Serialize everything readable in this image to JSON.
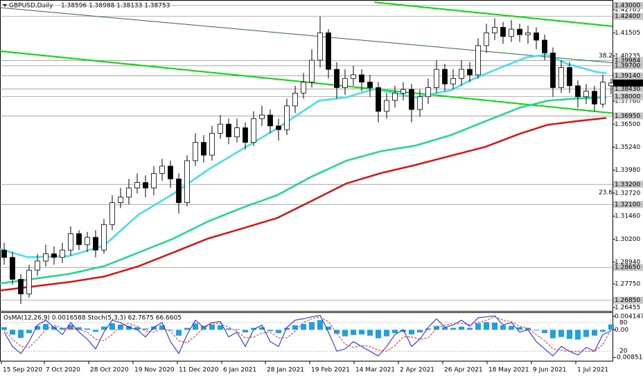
{
  "chart_data": {
    "type": "candlestick",
    "title": "GBPUSD,Daily",
    "quote": "1.38596 1.38988 1.38133 1.38753",
    "open": [
      1.296,
      1.292,
      1.28,
      1.272,
      1.285,
      1.29,
      1.294,
      1.292,
      1.296,
      1.305,
      1.299,
      1.303,
      1.296,
      1.31,
      1.322,
      1.325,
      1.33,
      1.333,
      1.33,
      1.338,
      1.342,
      1.335,
      1.322,
      1.345,
      1.355,
      1.348,
      1.36,
      1.365,
      1.358,
      1.363,
      1.355,
      1.368,
      1.37,
      1.364,
      1.362,
      1.375,
      1.382,
      1.388,
      1.4,
      1.415,
      1.395,
      1.385,
      1.39,
      1.392,
      1.388,
      1.385,
      1.372,
      1.378,
      1.382,
      1.384,
      1.373,
      1.38,
      1.385,
      1.395,
      1.387,
      1.39,
      1.395,
      1.392,
      1.408,
      1.415,
      1.418,
      1.413,
      1.417,
      1.414,
      1.415,
      1.411,
      1.404,
      1.385,
      1.396,
      1.386,
      1.38,
      1.383,
      1.376,
      1.386
    ],
    "high": [
      1.3,
      1.295,
      1.283,
      1.288,
      1.294,
      1.299,
      1.298,
      1.3,
      1.309,
      1.307,
      1.306,
      1.307,
      1.313,
      1.326,
      1.33,
      1.335,
      1.338,
      1.337,
      1.342,
      1.346,
      1.345,
      1.338,
      1.348,
      1.36,
      1.359,
      1.364,
      1.37,
      1.368,
      1.368,
      1.366,
      1.372,
      1.375,
      1.373,
      1.368,
      1.379,
      1.386,
      1.393,
      1.406,
      1.424,
      1.417,
      1.399,
      1.395,
      1.397,
      1.395,
      1.392,
      1.388,
      1.382,
      1.386,
      1.388,
      1.387,
      1.384,
      1.39,
      1.4,
      1.398,
      1.395,
      1.4,
      1.399,
      1.412,
      1.42,
      1.423,
      1.421,
      1.422,
      1.42,
      1.419,
      1.418,
      1.414,
      1.407,
      1.4,
      1.399,
      1.389,
      1.387,
      1.386,
      1.392,
      1.3899
    ],
    "low": [
      1.288,
      1.277,
      1.2665,
      1.27,
      1.282,
      1.287,
      1.288,
      1.289,
      1.293,
      1.296,
      1.295,
      1.292,
      1.294,
      1.307,
      1.319,
      1.321,
      1.327,
      1.325,
      1.326,
      1.334,
      1.33,
      1.316,
      1.32,
      1.342,
      1.344,
      1.345,
      1.357,
      1.354,
      1.355,
      1.351,
      1.353,
      1.364,
      1.36,
      1.356,
      1.359,
      1.371,
      1.379,
      1.385,
      1.396,
      1.39,
      1.379,
      1.381,
      1.386,
      1.383,
      1.38,
      1.366,
      1.368,
      1.374,
      1.378,
      1.366,
      1.369,
      1.376,
      1.382,
      1.383,
      1.384,
      1.386,
      1.388,
      1.39,
      1.404,
      1.411,
      1.409,
      1.41,
      1.41,
      1.409,
      1.406,
      1.4,
      1.38,
      1.382,
      1.382,
      1.374,
      1.376,
      1.372,
      1.374,
      1.3813
    ],
    "close": [
      1.292,
      1.28,
      1.272,
      1.285,
      1.29,
      1.294,
      1.292,
      1.296,
      1.305,
      1.299,
      1.303,
      1.296,
      1.31,
      1.322,
      1.325,
      1.33,
      1.333,
      1.33,
      1.338,
      1.342,
      1.335,
      1.322,
      1.345,
      1.355,
      1.348,
      1.36,
      1.365,
      1.358,
      1.363,
      1.355,
      1.368,
      1.37,
      1.364,
      1.362,
      1.375,
      1.382,
      1.388,
      1.4,
      1.415,
      1.395,
      1.385,
      1.39,
      1.392,
      1.388,
      1.385,
      1.372,
      1.378,
      1.382,
      1.384,
      1.373,
      1.38,
      1.385,
      1.395,
      1.387,
      1.39,
      1.395,
      1.392,
      1.408,
      1.415,
      1.418,
      1.413,
      1.417,
      1.414,
      1.415,
      1.411,
      1.404,
      1.385,
      1.396,
      1.386,
      1.38,
      1.383,
      1.376,
      1.388,
      1.3875
    ],
    "ylim": [
      1.2627,
      1.4326
    ],
    "yticks": [
      1.42765,
      1.41505,
      1.40235,
      {
        "value": 1.3776,
        "label": "1.37760"
      },
      {
        "value": 1.365,
        "label": "1.36500"
      },
      {
        "value": 1.3524,
        "label": "1.35240"
      },
      {
        "value": 1.3398,
        "label": "1.33980"
      },
      {
        "value": 1.3272,
        "label": "1.32720"
      },
      {
        "value": 1.3146,
        "label": "1.31460"
      },
      {
        "value": 1.302,
        "label": "1.30200"
      },
      {
        "value": 1.2894,
        "label": "1.28940"
      },
      {
        "value": 1.2775,
        "label": "1.27750"
      },
      1.26455
    ],
    "levels": [
      {
        "value": 1.43,
        "label": "1.43000"
      },
      {
        "value": 1.424,
        "label": "1.42400"
      },
      1.39984,
      {
        "value": 1.397,
        "label": "1.39700"
      },
      {
        "value": 1.3914,
        "label": "1.39140"
      },
      {
        "value": 1.3843,
        "label": "1.38430"
      },
      {
        "value": 1.38,
        "label": "1.38000"
      },
      {
        "value": 1.3695,
        "label": "1.36950"
      },
      {
        "value": 1.332,
        "label": "1.33200"
      },
      {
        "value": 1.321,
        "label": "1.32100"
      },
      {
        "value": 1.2865,
        "label": "1.28650"
      },
      {
        "value": 1.2685,
        "label": "1.26850"
      }
    ],
    "last_price": 1.38753,
    "xlim": [
      -0.5,
      73.17
    ],
    "xticks": [
      {
        "value": -0.33,
        "label": "15 Sep 2020"
      },
      {
        "value": 4.83,
        "label": "7 Oct 2020"
      },
      {
        "value": 10.17,
        "label": "28 Oct 2020"
      },
      {
        "value": 15.5,
        "label": "19 Nov 2020"
      },
      {
        "value": 20.83,
        "label": "11 Dec 2020"
      },
      {
        "value": 26.17,
        "label": "6 Jan 2021"
      },
      {
        "value": 31.42,
        "label": "28 Jan 2021"
      },
      {
        "value": 36.75,
        "label": "19 Feb 2021"
      },
      {
        "value": 42.08,
        "label": "14 Mar 2021"
      },
      {
        "value": 47.42,
        "label": "2 Apr 2021"
      },
      {
        "value": 52.75,
        "label": "26 Apr 2021"
      },
      {
        "value": 58.08,
        "label": "18 May 2021"
      },
      {
        "value": 63.42,
        "label": "9 Jun 2021"
      },
      {
        "value": 68.75,
        "label": "1 Jul 2021"
      }
    ],
    "moving_averages": [
      {
        "color": "#3fe0f0",
        "x": [
          -0.5,
          2.83,
          7.83,
          12,
          16.17,
          20.33,
          24.5,
          28.67,
          32.83,
          35.33,
          37.83,
          41.17,
          44.5,
          49.5,
          53.67,
          56.17,
          59.5,
          62.83,
          65.33,
          67.83,
          71.17,
          72.42
        ],
        "values": [
          1.2966,
          1.2921,
          1.2928,
          1.2985,
          1.3155,
          1.3268,
          1.34,
          1.3514,
          1.3627,
          1.3703,
          1.3778,
          1.3797,
          1.3842,
          1.3797,
          1.3835,
          1.3892,
          1.3956,
          1.4016,
          1.4031,
          1.3978,
          1.3937,
          1.3929
        ]
      },
      {
        "color": "#1fd890",
        "x": [
          -0.5,
          7.83,
          12,
          16.17,
          20.33,
          24.5,
          28.67,
          32.83,
          37,
          41.17,
          45.33,
          49.5,
          53.67,
          57.83,
          62,
          65.33,
          68.67,
          72.42
        ],
        "values": [
          1.2777,
          1.283,
          1.2872,
          1.2947,
          1.3023,
          1.3117,
          1.3193,
          1.3261,
          1.3363,
          1.345,
          1.3502,
          1.3533,
          1.3589,
          1.3665,
          1.374,
          1.3778,
          1.379,
          1.3797
        ]
      },
      {
        "color": "#e01010",
        "x": [
          -0.5,
          7.83,
          12,
          16.17,
          20.33,
          24.5,
          28.67,
          32.83,
          37,
          41.17,
          45.33,
          49.5,
          53.67,
          57.83,
          62,
          65.33,
          68.67,
          72.42
        ],
        "values": [
          1.2739,
          1.2785,
          1.2815,
          1.2872,
          1.2947,
          1.3023,
          1.3079,
          1.3136,
          1.323,
          1.3325,
          1.3382,
          1.3427,
          1.3476,
          1.3525,
          1.3597,
          1.3646,
          1.3665,
          1.3684
        ]
      }
    ],
    "trendlines": [
      {
        "color": "#00dd00",
        "width": 2,
        "x": [
          -0.5,
          73.17
        ],
        "values": [
          1.405,
          1.371
        ]
      },
      {
        "color": "#00dd00",
        "width": 2,
        "x": [
          44.5,
          73.17
        ],
        "values": [
          1.4318,
          1.4186
        ]
      },
      {
        "color": "#2e6b2e",
        "width": 1,
        "x": [
          -0.5,
          73.17
        ],
        "values": [
          1.4288,
          1.3986
        ]
      }
    ],
    "fib_labels": [
      {
        "text": "38.2",
        "price": 1.4025
      },
      {
        "text": "23.6",
        "price": 1.3275
      }
    ],
    "indicator": {
      "title": "OsMA(12,26,9) 0.0016588 Stoch(5,3,3) 62.7675 66.6605",
      "osma": {
        "color": "#1ea0e6",
        "ylim": [
          -0.00955,
          0.00519
        ],
        "yticks": [
          0.0041477,
          {
            "value": 0,
            "label": "0.00"
          },
          -0.008514
        ],
        "values": [
          0.0008,
          -0.0015,
          -0.0025,
          -0.001,
          0.0012,
          0.0018,
          0.001,
          0.0006,
          0.0015,
          0.0008,
          0.0004,
          -0.0006,
          0.001,
          0.002,
          0.0016,
          0.0012,
          0.0008,
          0.0004,
          0.001,
          0.0014,
          -0.0002,
          -0.0018,
          0.0006,
          0.002,
          0.0012,
          0.0016,
          0.0014,
          0.0004,
          0.0002,
          -0.0008,
          0.0006,
          0.0008,
          -0.0004,
          -0.001,
          0.0006,
          0.0014,
          0.0018,
          0.0024,
          0.003,
          0.001,
          -0.0012,
          -0.002,
          -0.0016,
          -0.0014,
          -0.0018,
          -0.0026,
          -0.002,
          -0.001,
          -0.0006,
          -0.0014,
          -0.0008,
          0.0004,
          0.0012,
          0.0008,
          0.0006,
          0.001,
          0.0006,
          0.002,
          0.0024,
          0.0022,
          0.0014,
          0.0012,
          0.0008,
          0.0006,
          -0.0002,
          -0.001,
          -0.0026,
          -0.0022,
          -0.0028,
          -0.003,
          -0.0022,
          -0.0018,
          -0.0006,
          0.0016588
        ]
      },
      "stoch": {
        "ylim": [
          0,
          100
        ],
        "yticks": [
          80,
          20
        ],
        "main": {
          "color": "#1a1aff",
          "values": [
            60,
            30,
            15,
            40,
            75,
            85,
            70,
            55,
            80,
            60,
            45,
            25,
            60,
            85,
            80,
            70,
            65,
            50,
            70,
            80,
            40,
            15,
            55,
            85,
            70,
            80,
            82,
            50,
            60,
            30,
            65,
            75,
            40,
            30,
            70,
            85,
            88,
            92,
            95,
            60,
            20,
            25,
            40,
            30,
            20,
            10,
            30,
            55,
            65,
            30,
            45,
            70,
            88,
            70,
            75,
            85,
            72,
            90,
            92,
            94,
            75,
            80,
            60,
            65,
            40,
            25,
            10,
            30,
            20,
            12,
            28,
            20,
            55,
            62.7675
          ]
        },
        "signal": {
          "color": "#ff2020",
          "values": [
            65,
            45,
            30,
            28,
            45,
            65,
            75,
            68,
            68,
            65,
            60,
            45,
            42,
            55,
            75,
            78,
            72,
            62,
            60,
            68,
            62,
            42,
            38,
            52,
            70,
            78,
            78,
            70,
            62,
            48,
            50,
            58,
            60,
            48,
            48,
            62,
            80,
            88,
            92,
            82,
            58,
            35,
            28,
            32,
            30,
            22,
            20,
            32,
            50,
            50,
            45,
            48,
            68,
            75,
            78,
            78,
            76,
            80,
            85,
            92,
            85,
            82,
            72,
            68,
            55,
            42,
            25,
            22,
            20,
            20,
            20,
            20,
            34,
            66.6605
          ]
        }
      }
    }
  }
}
